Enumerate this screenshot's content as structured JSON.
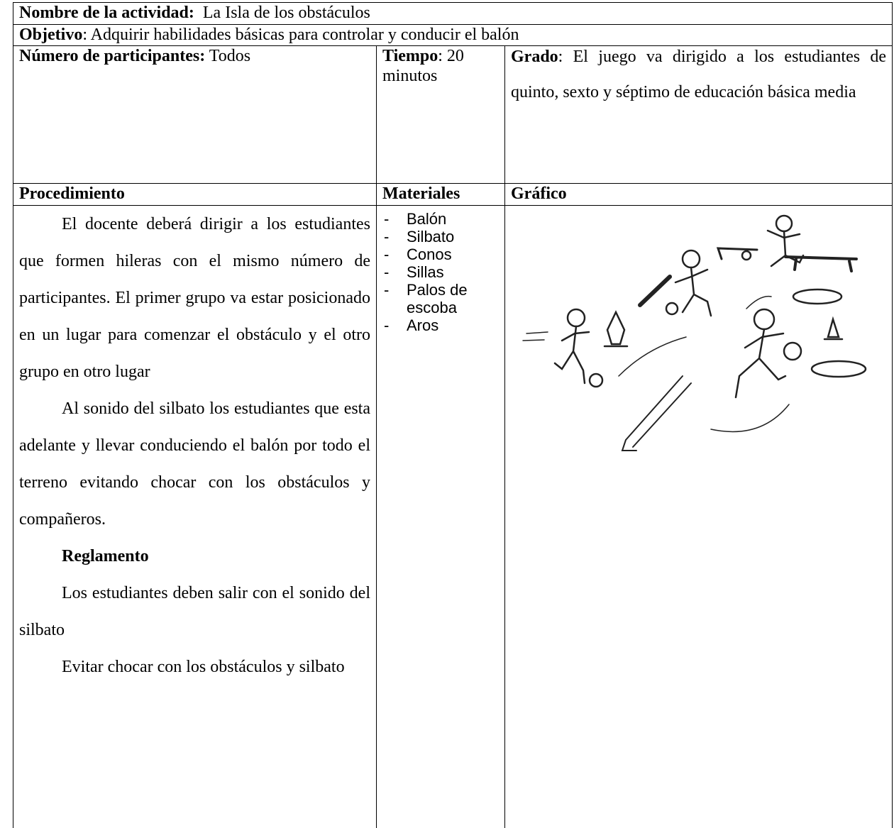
{
  "header": {
    "activity_label": "Nombre de la actividad:",
    "activity_name": "La Isla de los obstáculos",
    "objective_label": "Objetivo",
    "objective_text": ": Adquirir habilidades básicas para controlar y conducir el balón"
  },
  "details": {
    "participants_label": "Número de participantes:",
    "participants": "Todos",
    "time_label": "Tiempo",
    "time": ": 20 minutos",
    "grade_label": "Grado",
    "grade": ":  El juego va dirigido a los estudiantes de quinto, sexto y séptimo de educación básica media"
  },
  "columns": [
    "Procedimiento",
    "Materiales",
    "Gráfico"
  ],
  "procedure": {
    "paragraphs": [
      "El docente deberá dirigir a los estudiantes que formen hileras con el mismo número de participantes. El primer grupo va estar posicionado en un lugar para comenzar el obstáculo y el otro grupo en otro lugar",
      "Al sonido del silbato los estudiantes que esta adelante y llevar conduciendo el balón por todo el terreno evitando chocar con los obstáculos y compañeros."
    ],
    "rules_title": "Reglamento",
    "rules": [
      "Los estudiantes deben salir con el sonido del silbato",
      "Evitar chocar con los obstáculos y silbato"
    ]
  },
  "materials": [
    "Balón",
    "Silbato",
    "Conos",
    "Sillas",
    "Palos de escoba",
    "Aros"
  ]
}
